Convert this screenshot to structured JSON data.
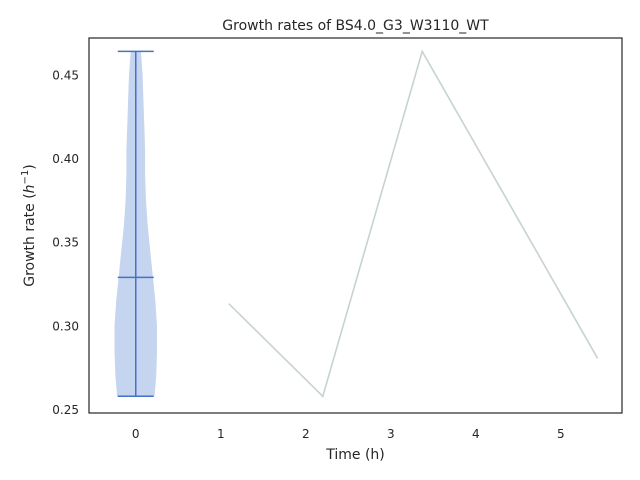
{
  "chart_data": {
    "type": "line",
    "title": "Growth rates of BS4.0_G3_W3110_WT",
    "xlabel": "Time (h)",
    "ylabel_prefix": "Growth rate (",
    "ylabel_var": "h",
    "ylabel_exp": "−1",
    "ylabel_suffix": ")",
    "xlim": [
      -0.55,
      5.72
    ],
    "ylim": [
      0.248,
      0.472
    ],
    "xticks": [
      0,
      1,
      2,
      3,
      4,
      5
    ],
    "yticks": [
      0.25,
      0.3,
      0.35,
      0.4,
      0.45
    ],
    "ytick_labels": [
      "0.25",
      "0.30",
      "0.35",
      "0.40",
      "0.45"
    ],
    "grid": false,
    "series": [
      {
        "kind": "line",
        "x": [
          1.1,
          2.2,
          3.37,
          5.43
        ],
        "values": [
          0.313,
          0.258,
          0.464,
          0.281
        ],
        "color": "#c6d3d1"
      }
    ],
    "violin": {
      "position": 0,
      "min": 0.258,
      "median": 0.329,
      "max": 0.464,
      "fill_color": "#c5d4ef",
      "line_color": "#4472c4",
      "profile": [
        [
          0.258,
          0.22
        ],
        [
          0.27,
          0.24
        ],
        [
          0.285,
          0.25
        ],
        [
          0.3,
          0.25
        ],
        [
          0.315,
          0.23
        ],
        [
          0.33,
          0.2
        ],
        [
          0.345,
          0.17
        ],
        [
          0.36,
          0.14
        ],
        [
          0.375,
          0.12
        ],
        [
          0.39,
          0.11
        ],
        [
          0.405,
          0.11
        ],
        [
          0.42,
          0.1
        ],
        [
          0.435,
          0.09
        ],
        [
          0.45,
          0.08
        ],
        [
          0.464,
          0.06
        ]
      ]
    }
  }
}
